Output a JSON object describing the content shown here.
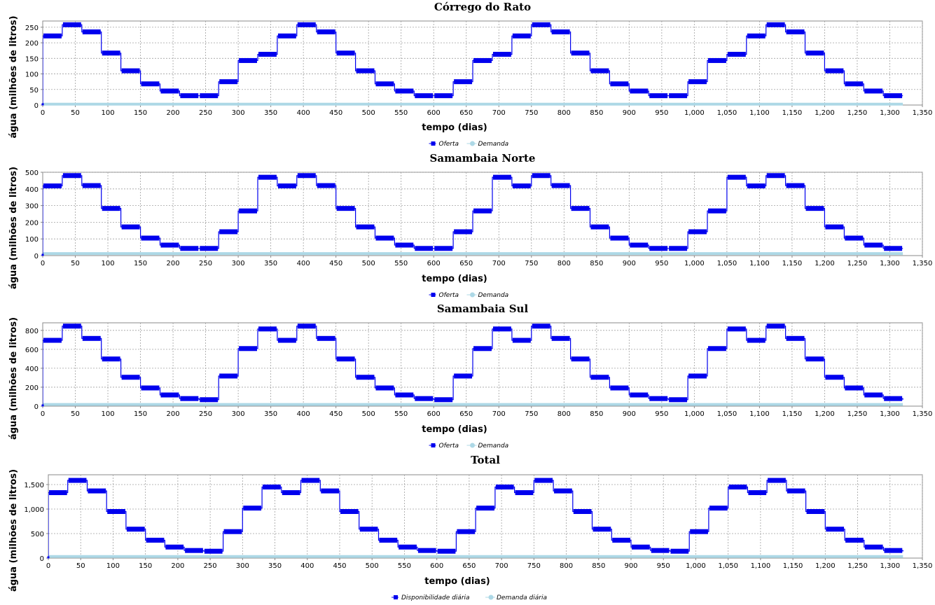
{
  "chart_data": [
    {
      "type": "line",
      "title": "Córrego do Rato",
      "xlabel": "tempo (dias)",
      "ylabel": "água (milhões de litros)",
      "xlim": [
        0,
        1350
      ],
      "ylim": [
        0,
        270
      ],
      "x_ticks": [
        0,
        50,
        100,
        150,
        200,
        250,
        300,
        350,
        400,
        450,
        500,
        550,
        600,
        650,
        700,
        750,
        800,
        850,
        900,
        950,
        1000,
        1050,
        1100,
        1150,
        1200,
        1250,
        1300,
        1350
      ],
      "x_tick_labels": [
        "0",
        "50",
        "100",
        "150",
        "200",
        "250",
        "300",
        "350",
        "400",
        "450",
        "500",
        "550",
        "600",
        "650",
        "700",
        "750",
        "800",
        "850",
        "900",
        "950",
        "1,000",
        "1,050",
        "1,100",
        "1,150",
        "1,200",
        "1,250",
        "1,300",
        "1,350"
      ],
      "y_ticks": [
        0,
        50,
        100,
        150,
        200,
        250
      ],
      "y_tick_labels": [
        "0",
        "50",
        "100",
        "150",
        "200",
        "250"
      ],
      "grid": true,
      "legend_position": "bottom-center",
      "series": [
        {
          "name": "Oferta",
          "color": "#0000ee",
          "style": "step",
          "x": [
            0,
            0,
            30,
            60,
            90,
            120,
            150,
            180,
            210,
            240,
            270,
            300,
            330,
            360,
            390,
            420,
            450,
            480,
            510,
            540,
            570,
            600,
            630,
            660,
            690,
            720,
            750,
            780,
            810,
            840,
            870,
            900,
            930,
            960,
            990,
            1020,
            1050,
            1080,
            1110,
            1140,
            1170,
            1200,
            1230,
            1260,
            1290,
            1320
          ],
          "values": [
            0,
            222,
            258,
            235,
            167,
            110,
            68,
            45,
            30,
            30,
            75,
            143,
            163,
            222,
            258,
            235,
            167,
            110,
            68,
            45,
            30,
            30,
            75,
            143,
            163,
            222,
            258,
            235,
            167,
            110,
            68,
            45,
            30,
            30,
            75,
            143,
            163,
            222,
            258,
            235,
            167,
            110,
            68,
            45,
            30,
            30
          ]
        },
        {
          "name": "Demanda",
          "color": "#add8e6",
          "style": "line",
          "x": [
            0,
            1320
          ],
          "values": [
            3,
            3
          ]
        }
      ]
    },
    {
      "type": "line",
      "title": "Samambaia Norte",
      "xlabel": "tempo (dias)",
      "ylabel": "água (milhões de litros)",
      "xlim": [
        0,
        1350
      ],
      "ylim": [
        0,
        500
      ],
      "x_ticks": [
        0,
        50,
        100,
        150,
        200,
        250,
        300,
        350,
        400,
        450,
        500,
        550,
        600,
        650,
        700,
        750,
        800,
        850,
        900,
        950,
        1000,
        1050,
        1100,
        1150,
        1200,
        1250,
        1300,
        1350
      ],
      "x_tick_labels": [
        "0",
        "50",
        "100",
        "150",
        "200",
        "250",
        "300",
        "350",
        "400",
        "450",
        "500",
        "550",
        "600",
        "650",
        "700",
        "750",
        "800",
        "850",
        "900",
        "950",
        "1,000",
        "1,050",
        "1,100",
        "1,150",
        "1,200",
        "1,250",
        "1,300",
        "1,350"
      ],
      "y_ticks": [
        0,
        100,
        200,
        300,
        400,
        500
      ],
      "y_tick_labels": [
        "0",
        "100",
        "200",
        "300",
        "400",
        "500"
      ],
      "grid": true,
      "legend_position": "bottom-center",
      "series": [
        {
          "name": "Oferta",
          "color": "#0000ee",
          "style": "step",
          "x": [
            0,
            0,
            30,
            60,
            90,
            120,
            150,
            180,
            210,
            240,
            270,
            300,
            330,
            360,
            390,
            420,
            450,
            480,
            510,
            540,
            570,
            600,
            630,
            660,
            690,
            720,
            750,
            780,
            810,
            840,
            870,
            900,
            930,
            960,
            990,
            1020,
            1050,
            1080,
            1110,
            1140,
            1170,
            1200,
            1230,
            1260,
            1290,
            1320
          ],
          "values": [
            0,
            418,
            480,
            420,
            283,
            172,
            105,
            63,
            43,
            43,
            143,
            268,
            470,
            418,
            480,
            420,
            283,
            172,
            105,
            63,
            43,
            43,
            143,
            268,
            470,
            418,
            480,
            420,
            283,
            172,
            105,
            63,
            43,
            43,
            143,
            268,
            470,
            418,
            480,
            420,
            283,
            172,
            105,
            63,
            43,
            43
          ]
        },
        {
          "name": "Demanda",
          "color": "#add8e6",
          "style": "line",
          "x": [
            0,
            1320
          ],
          "values": [
            12,
            12
          ]
        }
      ]
    },
    {
      "type": "line",
      "title": "Samambaia Sul",
      "xlabel": "tempo (dias)",
      "ylabel": "água (milhões de litros)",
      "xlim": [
        0,
        1350
      ],
      "ylim": [
        0,
        880
      ],
      "x_ticks": [
        0,
        50,
        100,
        150,
        200,
        250,
        300,
        350,
        400,
        450,
        500,
        550,
        600,
        650,
        700,
        750,
        800,
        850,
        900,
        950,
        1000,
        1050,
        1100,
        1150,
        1200,
        1250,
        1300,
        1350
      ],
      "x_tick_labels": [
        "0",
        "50",
        "100",
        "150",
        "200",
        "250",
        "300",
        "350",
        "400",
        "450",
        "500",
        "550",
        "600",
        "650",
        "700",
        "750",
        "800",
        "850",
        "900",
        "950",
        "1,000",
        "1,050",
        "1,100",
        "1,150",
        "1,200",
        "1,250",
        "1,300",
        "1,350"
      ],
      "y_ticks": [
        0,
        200,
        400,
        600,
        800
      ],
      "y_tick_labels": [
        "0",
        "200",
        "400",
        "600",
        "800"
      ],
      "grid": true,
      "legend_position": "bottom-center",
      "series": [
        {
          "name": "Oferta",
          "color": "#0000ee",
          "style": "step",
          "x": [
            0,
            0,
            30,
            60,
            90,
            120,
            150,
            180,
            210,
            240,
            270,
            300,
            330,
            360,
            390,
            420,
            450,
            480,
            510,
            540,
            570,
            600,
            630,
            660,
            690,
            720,
            750,
            780,
            810,
            840,
            870,
            900,
            930,
            960,
            990,
            1020,
            1050,
            1080,
            1110,
            1140,
            1170,
            1200,
            1230,
            1260,
            1290,
            1320
          ],
          "values": [
            0,
            695,
            845,
            715,
            498,
            305,
            192,
            118,
            80,
            68,
            318,
            608,
            815,
            695,
            845,
            715,
            498,
            305,
            192,
            118,
            80,
            68,
            318,
            608,
            815,
            695,
            845,
            715,
            498,
            305,
            192,
            118,
            80,
            68,
            318,
            608,
            815,
            695,
            845,
            715,
            498,
            305,
            192,
            118,
            80,
            68
          ]
        },
        {
          "name": "Demanda",
          "color": "#add8e6",
          "style": "line",
          "x": [
            0,
            1320
          ],
          "values": [
            18,
            18
          ]
        }
      ]
    },
    {
      "type": "line",
      "title": "Total",
      "xlabel": "tempo (dias)",
      "ylabel": "água (milhões de litros)",
      "xlim": [
        0,
        1350
      ],
      "ylim": [
        0,
        1700
      ],
      "x_ticks": [
        0,
        50,
        100,
        150,
        200,
        250,
        300,
        350,
        400,
        450,
        500,
        550,
        600,
        650,
        700,
        750,
        800,
        850,
        900,
        950,
        1000,
        1050,
        1100,
        1150,
        1200,
        1250,
        1300,
        1350
      ],
      "x_tick_labels": [
        "0",
        "50",
        "100",
        "150",
        "200",
        "250",
        "300",
        "350",
        "400",
        "450",
        "500",
        "550",
        "600",
        "650",
        "700",
        "750",
        "800",
        "850",
        "900",
        "950",
        "1,000",
        "1,050",
        "1,100",
        "1,150",
        "1,200",
        "1,250",
        "1,300",
        "1,350"
      ],
      "y_ticks": [
        0,
        500,
        1000,
        1500
      ],
      "y_tick_labels": [
        "0",
        "500",
        "1,000",
        "1,500"
      ],
      "grid": true,
      "legend_position": "bottom-center",
      "series": [
        {
          "name": "Disponibilidade diária",
          "color": "#0000ee",
          "style": "step",
          "x": [
            0,
            0,
            30,
            60,
            90,
            120,
            150,
            180,
            210,
            240,
            270,
            300,
            330,
            360,
            390,
            420,
            450,
            480,
            510,
            540,
            570,
            600,
            630,
            660,
            690,
            720,
            750,
            780,
            810,
            840,
            870,
            900,
            930,
            960,
            990,
            1020,
            1050,
            1080,
            1110,
            1140,
            1170,
            1200,
            1230,
            1260,
            1290,
            1320
          ],
          "values": [
            0,
            1335,
            1585,
            1370,
            950,
            590,
            365,
            225,
            155,
            140,
            540,
            1020,
            1450,
            1335,
            1585,
            1370,
            950,
            590,
            365,
            225,
            155,
            140,
            540,
            1020,
            1450,
            1335,
            1585,
            1370,
            950,
            590,
            365,
            225,
            155,
            140,
            540,
            1020,
            1450,
            1335,
            1585,
            1370,
            950,
            590,
            365,
            225,
            155,
            140
          ]
        },
        {
          "name": "Demanda diária",
          "color": "#add8e6",
          "style": "line",
          "x": [
            0,
            1320
          ],
          "values": [
            33,
            33
          ]
        }
      ]
    }
  ]
}
